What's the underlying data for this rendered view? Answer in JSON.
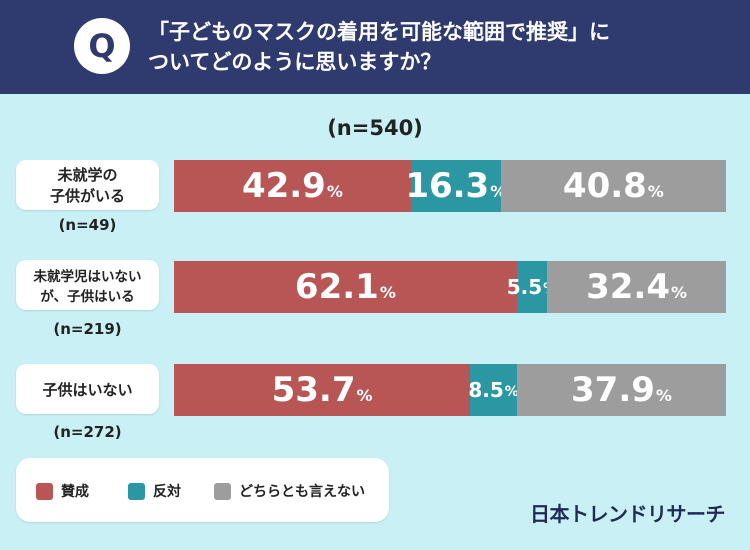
{
  "question": {
    "badge": "Q",
    "line1": "「子どものマスクの着用を可能な範囲で推奨」に",
    "line2": "ついてどのように思いますか？"
  },
  "chart_data": {
    "type": "bar",
    "orientation": "horizontal-stacked-100",
    "total_n_label": "(n=540)",
    "categories": [
      {
        "label": "未就学の\n子供がいる",
        "n": "(n=49)"
      },
      {
        "label": "未就学児はいない\nが、子供はいる",
        "n": "(n=219)"
      },
      {
        "label": "子供はいない",
        "n": "(n=272)"
      }
    ],
    "series": [
      {
        "name": "賛成",
        "color": "#b85656",
        "values": [
          42.9,
          62.1,
          53.7
        ]
      },
      {
        "name": "反対",
        "color": "#2b97a3",
        "values": [
          16.3,
          5.5,
          8.5
        ]
      },
      {
        "name": "どちらとも言えない",
        "color": "#9d9d9d",
        "values": [
          40.8,
          32.4,
          37.9
        ]
      }
    ],
    "value_suffix": "%",
    "xlim": [
      0,
      100
    ]
  },
  "brand": "日本トレンドリサーチ"
}
